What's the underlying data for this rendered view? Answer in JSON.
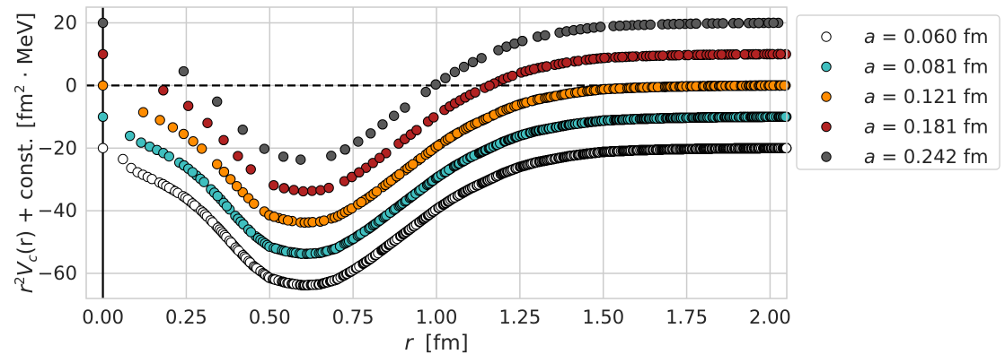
{
  "chart_data": {
    "type": "scatter",
    "xlabel_var": "r",
    "xlabel_unit": "[fm]",
    "ylabel_pre": "r",
    "ylabel_sup": "2",
    "ylabel_func": "V",
    "ylabel_sub": "c",
    "ylabel_arg": "(r) + const.",
    "ylabel_unit_open": "[fm",
    "ylabel_unit_sup": "2",
    "ylabel_unit_close": " · MeV]",
    "xlim": [
      -0.05,
      2.05
    ],
    "ylim": [
      -68,
      25
    ],
    "xticks": [
      "0.00",
      "0.25",
      "0.50",
      "0.75",
      "1.00",
      "1.25",
      "1.50",
      "1.75",
      "2.00"
    ],
    "yticks": [
      "−60",
      "−40",
      "−20",
      "0",
      "20"
    ],
    "grid": true,
    "reference_lines": {
      "horizontal_dashed_y": 0,
      "vertical_solid_x": 0
    },
    "legend_placement": "outside-right",
    "series": [
      {
        "name_var": "a",
        "name_value": " = 0.060 fm",
        "spacing": 0.06,
        "offset": -20,
        "color": "#ffffff",
        "t_max": 2.05
      },
      {
        "name_var": "a",
        "name_value": " = 0.081 fm",
        "spacing": 0.081,
        "offset": -10,
        "color": "#3fbfbf",
        "t_max": 2.05
      },
      {
        "name_var": "a",
        "name_value": " = 0.121 fm",
        "spacing": 0.121,
        "offset": 0,
        "color": "#ff8c00",
        "t_max": 2.05
      },
      {
        "name_var": "a",
        "name_value": " = 0.181 fm",
        "spacing": 0.181,
        "offset": 10,
        "color": "#b22222",
        "t_max": 2.05
      },
      {
        "name_var": "a",
        "name_value": " = 0.242 fm",
        "spacing": 0.242,
        "offset": 20,
        "color": "#595959",
        "t_max": 2.05
      }
    ],
    "curve_samples": {
      "r": [
        0.0,
        0.06,
        0.08,
        0.1,
        0.12,
        0.15,
        0.18,
        0.22,
        0.25,
        0.3,
        0.35,
        0.4,
        0.45,
        0.5,
        0.55,
        0.6,
        0.65,
        0.7,
        0.75,
        0.8,
        0.85,
        0.9,
        0.95,
        1.0,
        1.05,
        1.1,
        1.15,
        1.2,
        1.25,
        1.3,
        1.35,
        1.4,
        1.45,
        1.5,
        1.6,
        1.7,
        1.8,
        1.9,
        2.0,
        2.05
      ],
      "y": [
        0,
        -3.5,
        -6,
        -7.5,
        -8.5,
        -10,
        -11.5,
        -14,
        -16,
        -20.5,
        -26,
        -32,
        -37.5,
        -41.5,
        -43,
        -43.8,
        -43.5,
        -42,
        -39,
        -35.5,
        -31.5,
        -27.5,
        -23.5,
        -19.5,
        -16,
        -13,
        -10.5,
        -8,
        -6,
        -4.5,
        -3.5,
        -2.5,
        -1.8,
        -1.2,
        -0.7,
        -0.4,
        -0.2,
        -0.1,
        0,
        0
      ]
    }
  }
}
